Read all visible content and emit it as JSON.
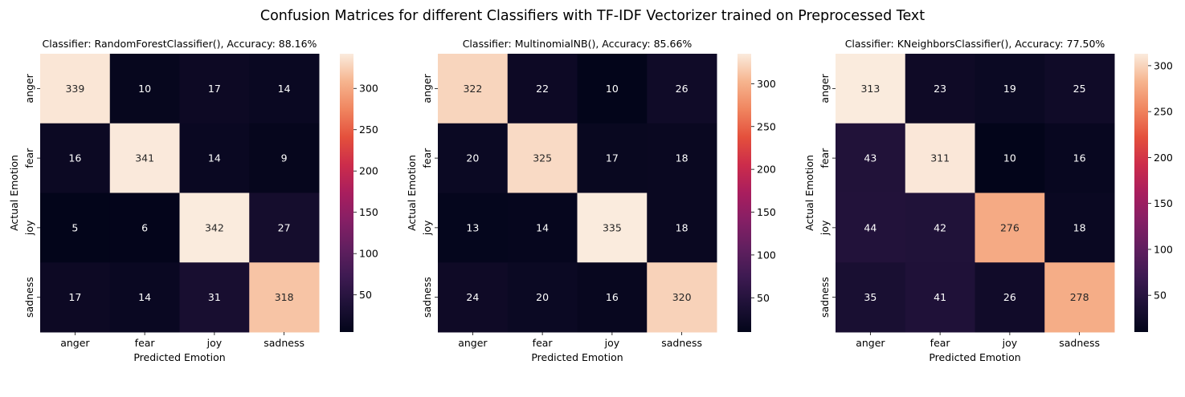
{
  "figure": {
    "suptitle": "Confusion Matrices for different Classifiers with TF-IDF Vectorizer trained on Preprocessed Text"
  },
  "chart_data": [
    {
      "type": "heatmap",
      "title": "Classifier: RandomForestClassifier(), Accuracy: 88.16%",
      "xlabel": "Predicted Emotion",
      "ylabel": "Actual Emotion",
      "x_categories": [
        "anger",
        "fear",
        "joy",
        "sadness"
      ],
      "y_categories": [
        "anger",
        "fear",
        "joy",
        "sadness"
      ],
      "values": [
        [
          339,
          10,
          17,
          14
        ],
        [
          16,
          341,
          14,
          9
        ],
        [
          5,
          6,
          342,
          27
        ],
        [
          17,
          14,
          31,
          318
        ]
      ],
      "colorbar_range": [
        5,
        342
      ],
      "colorbar_ticks": [
        50,
        100,
        150,
        200,
        250,
        300
      ]
    },
    {
      "type": "heatmap",
      "title": "Classifier: MultinomialNB(), Accuracy: 85.66%",
      "xlabel": "Predicted Emotion",
      "ylabel": "Actual Emotion",
      "x_categories": [
        "anger",
        "fear",
        "joy",
        "sadness"
      ],
      "y_categories": [
        "anger",
        "fear",
        "joy",
        "sadness"
      ],
      "values": [
        [
          322,
          22,
          10,
          26
        ],
        [
          20,
          325,
          17,
          18
        ],
        [
          13,
          14,
          335,
          18
        ],
        [
          24,
          20,
          16,
          320
        ]
      ],
      "colorbar_range": [
        10,
        335
      ],
      "colorbar_ticks": [
        50,
        100,
        150,
        200,
        250,
        300
      ]
    },
    {
      "type": "heatmap",
      "title": "Classifier: KNeighborsClassifier(), Accuracy: 77.50%",
      "xlabel": "Predicted Emotion",
      "ylabel": "Actual Emotion",
      "x_categories": [
        "anger",
        "fear",
        "joy",
        "sadness"
      ],
      "y_categories": [
        "anger",
        "fear",
        "joy",
        "sadness"
      ],
      "values": [
        [
          313,
          23,
          19,
          25
        ],
        [
          43,
          311,
          10,
          16
        ],
        [
          44,
          42,
          276,
          18
        ],
        [
          35,
          41,
          26,
          278
        ]
      ],
      "colorbar_range": [
        10,
        313
      ],
      "colorbar_ticks": [
        50,
        100,
        150,
        200,
        250,
        300
      ]
    }
  ]
}
